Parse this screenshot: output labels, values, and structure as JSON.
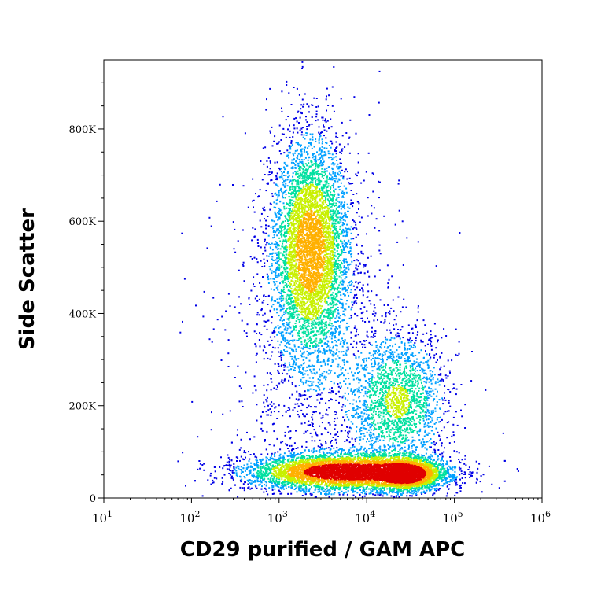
{
  "chart_data": {
    "type": "scatter",
    "subtype": "flow-cytometry-density-dot-plot",
    "xlabel": "CD29 purified / GAM APC",
    "ylabel": "Side Scatter",
    "x_scale": "log",
    "xlim": [
      10,
      1000000
    ],
    "ylim": [
      0,
      950000
    ],
    "x_ticks": [
      {
        "value": 10,
        "base": "10",
        "exp": "1"
      },
      {
        "value": 100,
        "base": "10",
        "exp": "2"
      },
      {
        "value": 1000,
        "base": "10",
        "exp": "3"
      },
      {
        "value": 10000,
        "base": "10",
        "exp": "4"
      },
      {
        "value": 100000,
        "base": "10",
        "exp": "5"
      },
      {
        "value": 1000000,
        "base": "10",
        "exp": "6"
      }
    ],
    "y_ticks": [
      {
        "value": 0,
        "label": "0"
      },
      {
        "value": 200000,
        "label": "200K"
      },
      {
        "value": 400000,
        "label": "400K"
      },
      {
        "value": 600000,
        "label": "600K"
      },
      {
        "value": 800000,
        "label": "800K"
      }
    ],
    "color_scale": [
      "#0000e6",
      "#00a0ff",
      "#00e0a0",
      "#c8f000",
      "#ffb000",
      "#e00000"
    ],
    "populations": [
      {
        "x_log10_center": 3.35,
        "y_center": 540000,
        "x_log10_sd": 0.22,
        "y_sd": 120000,
        "events": 5000,
        "peak_density": 0.62
      },
      {
        "x_log10_center": 3.75,
        "y_center": 58000,
        "x_log10_sd": 0.55,
        "y_sd": 20000,
        "events": 6000,
        "peak_density": 1.0
      },
      {
        "x_log10_center": 4.45,
        "y_center": 52000,
        "x_log10_sd": 0.2,
        "y_sd": 18000,
        "events": 2200,
        "peak_density": 0.8
      },
      {
        "x_log10_center": 4.35,
        "y_center": 210000,
        "x_log10_sd": 0.28,
        "y_sd": 75000,
        "events": 2000,
        "peak_density": 0.35
      },
      {
        "x_log10_center": 3.4,
        "y_center": 300000,
        "x_log10_sd": 0.5,
        "y_sd": 230000,
        "events": 1400,
        "peak_density": 0.05
      }
    ]
  }
}
